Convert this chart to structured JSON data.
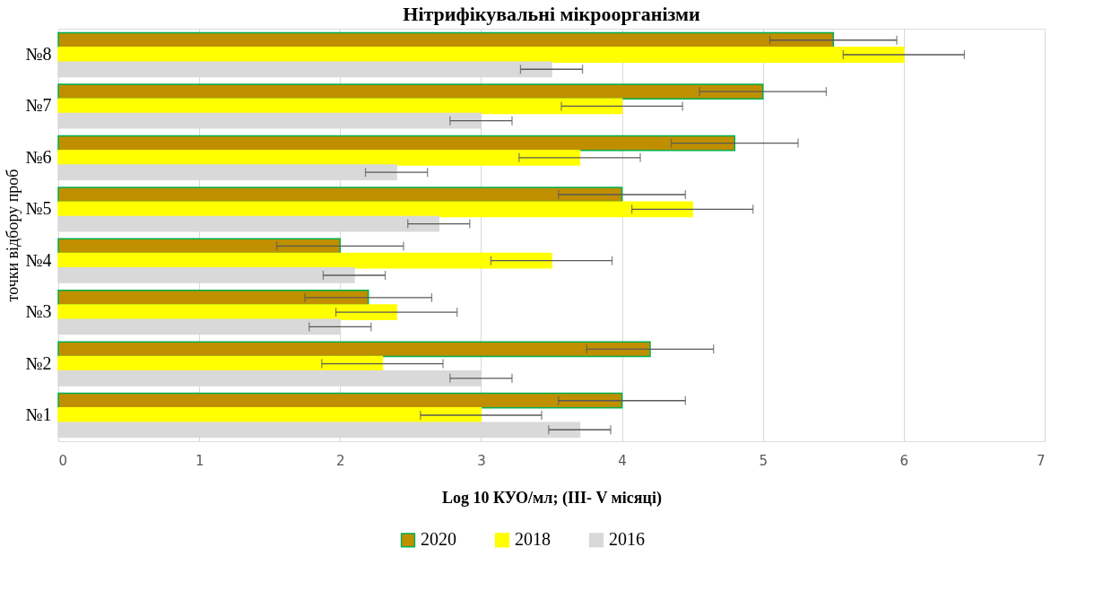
{
  "chart_data": {
    "type": "bar",
    "orientation": "horizontal",
    "title": "Нітрифікувальні мікроорганізми",
    "xlabel": "Log 10 КУО/мл; (ІІІ- V місяці)",
    "ylabel": "точки відбору проб",
    "categories": [
      "№8",
      "№7",
      "№6",
      "№5",
      "№4",
      "№3",
      "№2",
      "№1"
    ],
    "series": [
      {
        "name": "2020",
        "color": "#bf8f00",
        "values": [
          5.5,
          5.0,
          4.8,
          4.0,
          2.0,
          2.2,
          4.2,
          4.0
        ],
        "errors": [
          0.45,
          0.45,
          0.45,
          0.45,
          0.45,
          0.45,
          0.45,
          0.45
        ]
      },
      {
        "name": "2018",
        "color": "#ffff00",
        "values": [
          6.0,
          4.0,
          3.7,
          4.5,
          3.5,
          2.4,
          2.3,
          3.0
        ],
        "errors": [
          0.43,
          0.43,
          0.43,
          0.43,
          0.43,
          0.43,
          0.43,
          0.43
        ]
      },
      {
        "name": "2016",
        "color": "#d9d9d9",
        "values": [
          3.5,
          3.0,
          2.4,
          2.7,
          2.1,
          2.0,
          3.0,
          3.7
        ],
        "errors": [
          0.22,
          0.22,
          0.22,
          0.22,
          0.22,
          0.22,
          0.22,
          0.22
        ]
      }
    ],
    "xlim": [
      0,
      7
    ],
    "xticks": [
      0,
      1,
      2,
      3,
      4,
      5,
      6,
      7
    ],
    "grid": "x",
    "legend": "bottom"
  }
}
